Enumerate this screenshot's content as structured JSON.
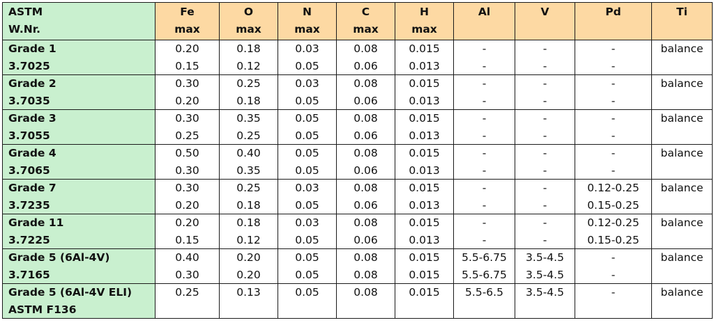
{
  "header": {
    "grade": [
      "ASTM",
      "W.Nr."
    ],
    "fe": [
      "Fe",
      "max"
    ],
    "o": [
      "O",
      "max"
    ],
    "n": [
      "N",
      "max"
    ],
    "c": [
      "C",
      "max"
    ],
    "h": [
      "H",
      "max"
    ],
    "al": [
      "Al",
      ""
    ],
    "v": [
      "V",
      ""
    ],
    "pd": [
      "Pd",
      ""
    ],
    "ti": [
      "Ti",
      ""
    ]
  },
  "rows": [
    {
      "grade": [
        "Grade 1",
        "3.7025"
      ],
      "fe": [
        "0.20",
        "0.15"
      ],
      "o": [
        "0.18",
        "0.12"
      ],
      "n": [
        "0.03",
        "0.05"
      ],
      "c": [
        "0.08",
        "0.06"
      ],
      "h": [
        "0.015",
        "0.013"
      ],
      "al": [
        "-",
        "-"
      ],
      "v": [
        "-",
        "-"
      ],
      "pd": [
        "-",
        "-"
      ],
      "ti": [
        "balance",
        ""
      ]
    },
    {
      "grade": [
        "Grade 2",
        "3.7035"
      ],
      "fe": [
        "0.30",
        "0.20"
      ],
      "o": [
        "0.25",
        "0.18"
      ],
      "n": [
        "0.03",
        "0.05"
      ],
      "c": [
        "0.08",
        "0.06"
      ],
      "h": [
        "0.015",
        "0.013"
      ],
      "al": [
        "-",
        "-"
      ],
      "v": [
        "-",
        "-"
      ],
      "pd": [
        "-",
        "-"
      ],
      "ti": [
        "balance",
        ""
      ]
    },
    {
      "grade": [
        "Grade 3",
        "3.7055"
      ],
      "fe": [
        "0.30",
        "0.25"
      ],
      "o": [
        "0.35",
        "0.25"
      ],
      "n": [
        "0.05",
        "0.05"
      ],
      "c": [
        "0.08",
        "0.06"
      ],
      "h": [
        "0.015",
        "0.013"
      ],
      "al": [
        "-",
        "-"
      ],
      "v": [
        "-",
        "-"
      ],
      "pd": [
        "-",
        "-"
      ],
      "ti": [
        "balance",
        ""
      ]
    },
    {
      "grade": [
        "Grade 4",
        "3.7065"
      ],
      "fe": [
        "0.50",
        "0.30"
      ],
      "o": [
        "0.40",
        "0.35"
      ],
      "n": [
        "0.05",
        "0.05"
      ],
      "c": [
        "0.08",
        "0.06"
      ],
      "h": [
        "0.015",
        "0.013"
      ],
      "al": [
        "-",
        "-"
      ],
      "v": [
        "-",
        "-"
      ],
      "pd": [
        "-",
        "-"
      ],
      "ti": [
        "balance",
        ""
      ]
    },
    {
      "grade": [
        "Grade 7",
        "3.7235"
      ],
      "fe": [
        "0.30",
        "0.20"
      ],
      "o": [
        "0.25",
        "0.18"
      ],
      "n": [
        "0.03",
        "0.05"
      ],
      "c": [
        "0.08",
        "0.06"
      ],
      "h": [
        "0.015",
        "0.013"
      ],
      "al": [
        "-",
        "-"
      ],
      "v": [
        "-",
        "-"
      ],
      "pd": [
        "0.12-0.25",
        "0.15-0.25"
      ],
      "ti": [
        "balance",
        ""
      ]
    },
    {
      "grade": [
        "Grade 11",
        "3.7225"
      ],
      "fe": [
        "0.20",
        "0.15"
      ],
      "o": [
        "0.18",
        "0.12"
      ],
      "n": [
        "0.03",
        "0.05"
      ],
      "c": [
        "0.08",
        "0.06"
      ],
      "h": [
        "0.015",
        "0.013"
      ],
      "al": [
        "-",
        "-"
      ],
      "v": [
        "-",
        "-"
      ],
      "pd": [
        "0.12-0.25",
        "0.15-0.25"
      ],
      "ti": [
        "balance",
        ""
      ]
    },
    {
      "grade": [
        "Grade 5 (6Al-4V)",
        "3.7165"
      ],
      "fe": [
        "0.40",
        "0.30"
      ],
      "o": [
        "0.20",
        "0.20"
      ],
      "n": [
        "0.05",
        "0.05"
      ],
      "c": [
        "0.08",
        "0.08"
      ],
      "h": [
        "0.015",
        "0.015"
      ],
      "al": [
        "5.5-6.75",
        "5.5-6.75"
      ],
      "v": [
        "3.5-4.5",
        "3.5-4.5"
      ],
      "pd": [
        "-",
        "-"
      ],
      "ti": [
        "balance",
        ""
      ]
    },
    {
      "grade": [
        "Grade 5 (6Al-4V ELI)",
        "ASTM F136"
      ],
      "fe": [
        "0.25",
        ""
      ],
      "o": [
        "0.13",
        ""
      ],
      "n": [
        "0.05",
        ""
      ],
      "c": [
        "0.08",
        ""
      ],
      "h": [
        "0.015",
        ""
      ],
      "al": [
        "5.5-6.5",
        ""
      ],
      "v": [
        "3.5-4.5",
        ""
      ],
      "pd": [
        "-",
        ""
      ],
      "ti": [
        "balance",
        ""
      ]
    }
  ]
}
